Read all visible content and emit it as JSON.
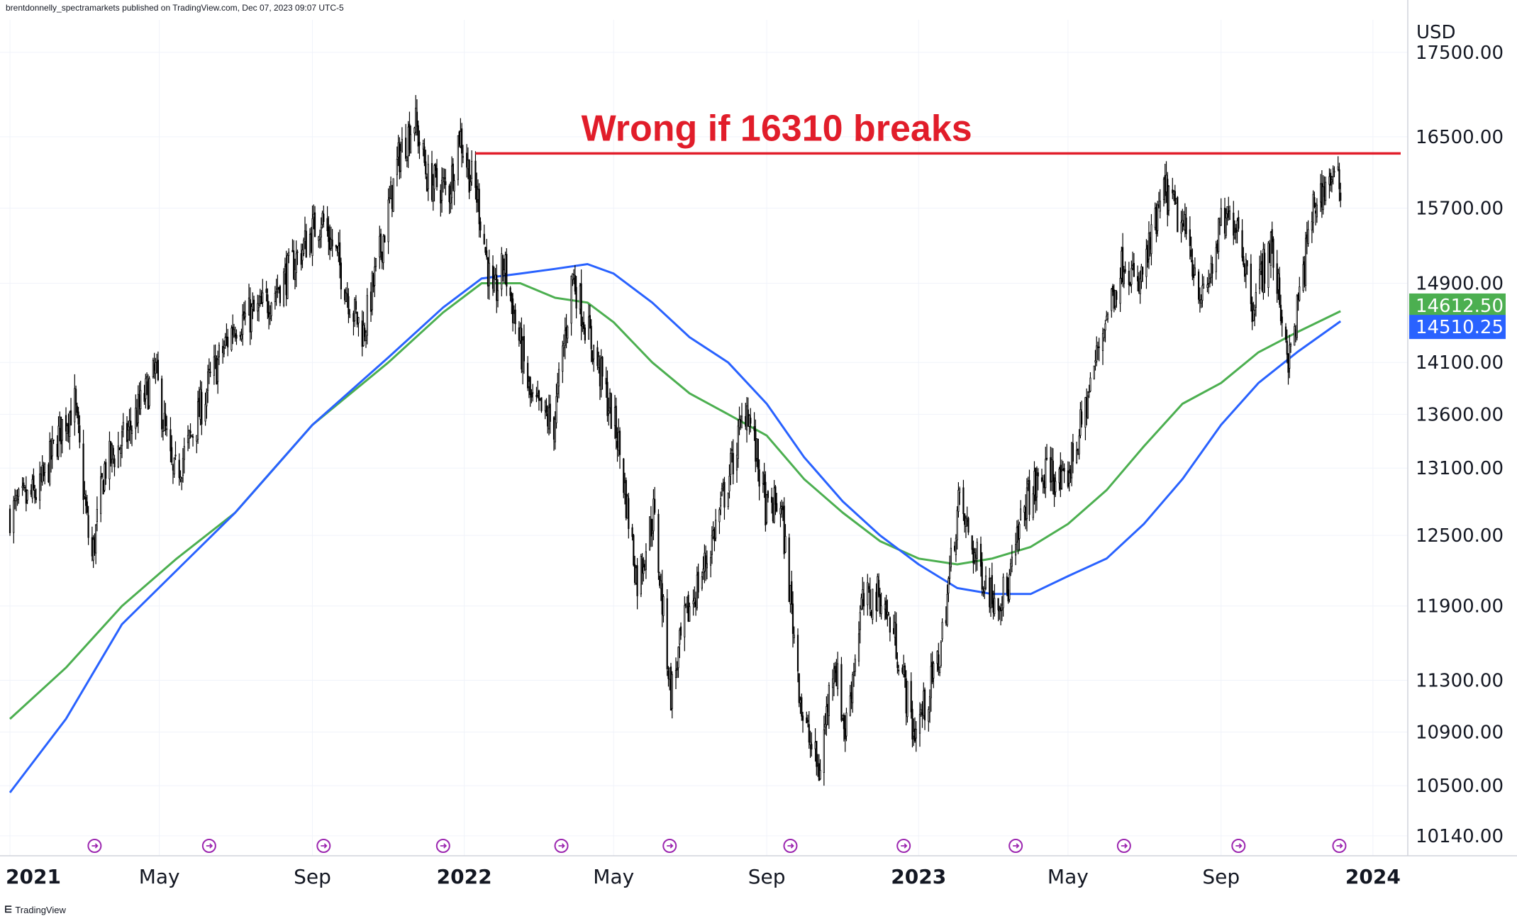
{
  "header": {
    "text": "brentdonnelly_spectramarkets published on TradingView.com, Dec 07, 2023 09:07 UTC-5"
  },
  "footer": {
    "logo": "⋿",
    "brand": "TradingView"
  },
  "currency": "USD",
  "colors": {
    "candle": "#000000",
    "ma_green": "#4caf50",
    "ma_blue": "#2962ff",
    "resistance": "#e11d2a",
    "event_icon": "#9c27b0",
    "grid": "#f0f3fa"
  },
  "chart_data": {
    "type": "line",
    "annotation": "Wrong if 16310 breaks",
    "resistance_level": 16310,
    "price_badges": [
      {
        "value": "14612.50",
        "color": "#4caf50"
      },
      {
        "value": "14510.25",
        "color": "#2962ff"
      }
    ],
    "y_ticks": [
      17500,
      16500,
      15700,
      14900,
      14100,
      13600,
      13100,
      12500,
      11900,
      11300,
      10900,
      10500,
      10140
    ],
    "y_tick_labels": [
      "17500.00",
      "16500.00",
      "15700.00",
      "14900.00",
      "14100.00",
      "13600.00",
      "13100.00",
      "12500.00",
      "11900.00",
      "11300.00",
      "10900.00",
      "10500.00",
      "10140.00"
    ],
    "x_ticks": [
      {
        "date": "2021-01-01",
        "label": "2021",
        "bold": true
      },
      {
        "date": "2021-05-01",
        "label": "May",
        "bold": false
      },
      {
        "date": "2021-09-01",
        "label": "Sep",
        "bold": false
      },
      {
        "date": "2022-01-01",
        "label": "2022",
        "bold": true
      },
      {
        "date": "2022-05-01",
        "label": "May",
        "bold": false
      },
      {
        "date": "2022-09-01",
        "label": "Sep",
        "bold": false
      },
      {
        "date": "2023-01-01",
        "label": "2023",
        "bold": true
      },
      {
        "date": "2023-05-01",
        "label": "May",
        "bold": false
      },
      {
        "date": "2023-09-01",
        "label": "Sep",
        "bold": false
      },
      {
        "date": "2024-01-01",
        "label": "2024",
        "bold": true
      }
    ],
    "event_dates": [
      "2021-03-10",
      "2021-06-10",
      "2021-09-10",
      "2021-12-15",
      "2022-03-20",
      "2022-06-15",
      "2022-09-20",
      "2022-12-20",
      "2023-03-20",
      "2023-06-15",
      "2023-09-15",
      "2023-12-05"
    ],
    "price_path": [
      [
        "2021-01-01",
        12700
      ],
      [
        "2021-01-25",
        12900
      ],
      [
        "2021-02-12",
        13500
      ],
      [
        "2021-02-22",
        13700
      ],
      [
        "2021-03-05",
        12500
      ],
      [
        "2021-03-08",
        12300
      ],
      [
        "2021-03-18",
        13100
      ],
      [
        "2021-04-05",
        13400
      ],
      [
        "2021-04-28",
        14000
      ],
      [
        "2021-05-12",
        13000
      ],
      [
        "2021-05-24",
        13300
      ],
      [
        "2021-06-10",
        13900
      ],
      [
        "2021-07-01",
        14500
      ],
      [
        "2021-07-20",
        14600
      ],
      [
        "2021-08-12",
        15000
      ],
      [
        "2021-09-08",
        15600
      ],
      [
        "2021-09-20",
        15200
      ],
      [
        "2021-10-04",
        14600
      ],
      [
        "2021-10-12",
        14400
      ],
      [
        "2021-10-25",
        15200
      ],
      [
        "2021-11-10",
        16300
      ],
      [
        "2021-11-22",
        16700
      ],
      [
        "2021-12-03",
        16000
      ],
      [
        "2021-12-20",
        15900
      ],
      [
        "2021-12-28",
        16550
      ],
      [
        "2022-01-05",
        16100
      ],
      [
        "2022-01-12",
        15800
      ],
      [
        "2022-01-24",
        14700
      ],
      [
        "2022-02-02",
        15100
      ],
      [
        "2022-02-24",
        13700
      ],
      [
        "2022-03-14",
        13500
      ],
      [
        "2022-03-29",
        15000
      ],
      [
        "2022-04-06",
        14600
      ],
      [
        "2022-04-20",
        14000
      ],
      [
        "2022-05-04",
        13400
      ],
      [
        "2022-05-20",
        12100
      ],
      [
        "2022-06-02",
        12700
      ],
      [
        "2022-06-16",
        11200
      ],
      [
        "2022-06-28",
        11800
      ],
      [
        "2022-07-15",
        12300
      ],
      [
        "2022-08-01",
        13000
      ],
      [
        "2022-08-16",
        13700
      ],
      [
        "2022-09-01",
        12700
      ],
      [
        "2022-09-12",
        12800
      ],
      [
        "2022-09-30",
        11000
      ],
      [
        "2022-10-13",
        10600
      ],
      [
        "2022-10-25",
        11500
      ],
      [
        "2022-11-03",
        10900
      ],
      [
        "2022-11-16",
        11900
      ],
      [
        "2022-12-01",
        12000
      ],
      [
        "2022-12-14",
        11600
      ],
      [
        "2022-12-28",
        10900
      ],
      [
        "2023-01-06",
        11100
      ],
      [
        "2023-01-18",
        11500
      ],
      [
        "2023-02-02",
        12800
      ],
      [
        "2023-02-16",
        12300
      ],
      [
        "2023-03-01",
        12000
      ],
      [
        "2023-03-13",
        12000
      ],
      [
        "2023-03-28",
        12800
      ],
      [
        "2023-04-17",
        13100
      ],
      [
        "2023-04-27",
        12900
      ],
      [
        "2023-05-12",
        13500
      ],
      [
        "2023-05-30",
        14500
      ],
      [
        "2023-06-16",
        15200
      ],
      [
        "2023-06-26",
        14800
      ],
      [
        "2023-07-18",
        15900
      ],
      [
        "2023-08-04",
        15400
      ],
      [
        "2023-08-18",
        14700
      ],
      [
        "2023-09-01",
        15500
      ],
      [
        "2023-09-14",
        15600
      ],
      [
        "2023-09-26",
        14700
      ],
      [
        "2023-10-11",
        15300
      ],
      [
        "2023-10-26",
        14100
      ],
      [
        "2023-11-01",
        14600
      ],
      [
        "2023-11-14",
        15700
      ],
      [
        "2023-11-28",
        16050
      ],
      [
        "2023-12-06",
        15900
      ]
    ],
    "ma_green": [
      [
        "2021-01-01",
        11000
      ],
      [
        "2021-02-15",
        11400
      ],
      [
        "2021-04-01",
        11900
      ],
      [
        "2021-05-15",
        12300
      ],
      [
        "2021-07-01",
        12700
      ],
      [
        "2021-09-01",
        13500
      ],
      [
        "2021-11-01",
        14100
      ],
      [
        "2021-12-15",
        14600
      ],
      [
        "2022-01-15",
        14900
      ],
      [
        "2022-02-15",
        14900
      ],
      [
        "2022-03-15",
        14750
      ],
      [
        "2022-04-10",
        14700
      ],
      [
        "2022-05-01",
        14500
      ],
      [
        "2022-06-01",
        14100
      ],
      [
        "2022-07-01",
        13800
      ],
      [
        "2022-08-01",
        13600
      ],
      [
        "2022-09-01",
        13400
      ],
      [
        "2022-10-01",
        13000
      ],
      [
        "2022-11-01",
        12700
      ],
      [
        "2022-12-01",
        12450
      ],
      [
        "2023-01-01",
        12300
      ],
      [
        "2023-02-01",
        12250
      ],
      [
        "2023-03-01",
        12300
      ],
      [
        "2023-04-01",
        12400
      ],
      [
        "2023-05-01",
        12600
      ],
      [
        "2023-06-01",
        12900
      ],
      [
        "2023-07-01",
        13300
      ],
      [
        "2023-08-01",
        13700
      ],
      [
        "2023-09-01",
        13900
      ],
      [
        "2023-10-01",
        14200
      ],
      [
        "2023-11-01",
        14400
      ],
      [
        "2023-12-06",
        14612.5
      ]
    ],
    "ma_blue": [
      [
        "2021-01-01",
        10450
      ],
      [
        "2021-02-15",
        11000
      ],
      [
        "2021-04-01",
        11750
      ],
      [
        "2021-05-15",
        12200
      ],
      [
        "2021-07-01",
        12700
      ],
      [
        "2021-09-01",
        13500
      ],
      [
        "2021-11-01",
        14150
      ],
      [
        "2021-12-15",
        14650
      ],
      [
        "2022-01-15",
        14950
      ],
      [
        "2022-02-15",
        15000
      ],
      [
        "2022-03-15",
        15050
      ],
      [
        "2022-04-10",
        15100
      ],
      [
        "2022-05-01",
        15000
      ],
      [
        "2022-06-01",
        14700
      ],
      [
        "2022-07-01",
        14350
      ],
      [
        "2022-08-01",
        14100
      ],
      [
        "2022-09-01",
        13700
      ],
      [
        "2022-10-01",
        13200
      ],
      [
        "2022-11-01",
        12800
      ],
      [
        "2022-12-01",
        12500
      ],
      [
        "2023-01-01",
        12250
      ],
      [
        "2023-02-01",
        12050
      ],
      [
        "2023-03-01",
        12000
      ],
      [
        "2023-04-01",
        12000
      ],
      [
        "2023-05-01",
        12150
      ],
      [
        "2023-06-01",
        12300
      ],
      [
        "2023-07-01",
        12600
      ],
      [
        "2023-08-01",
        13000
      ],
      [
        "2023-09-01",
        13500
      ],
      [
        "2023-10-01",
        13900
      ],
      [
        "2023-11-01",
        14200
      ],
      [
        "2023-12-06",
        14510.25
      ]
    ]
  }
}
